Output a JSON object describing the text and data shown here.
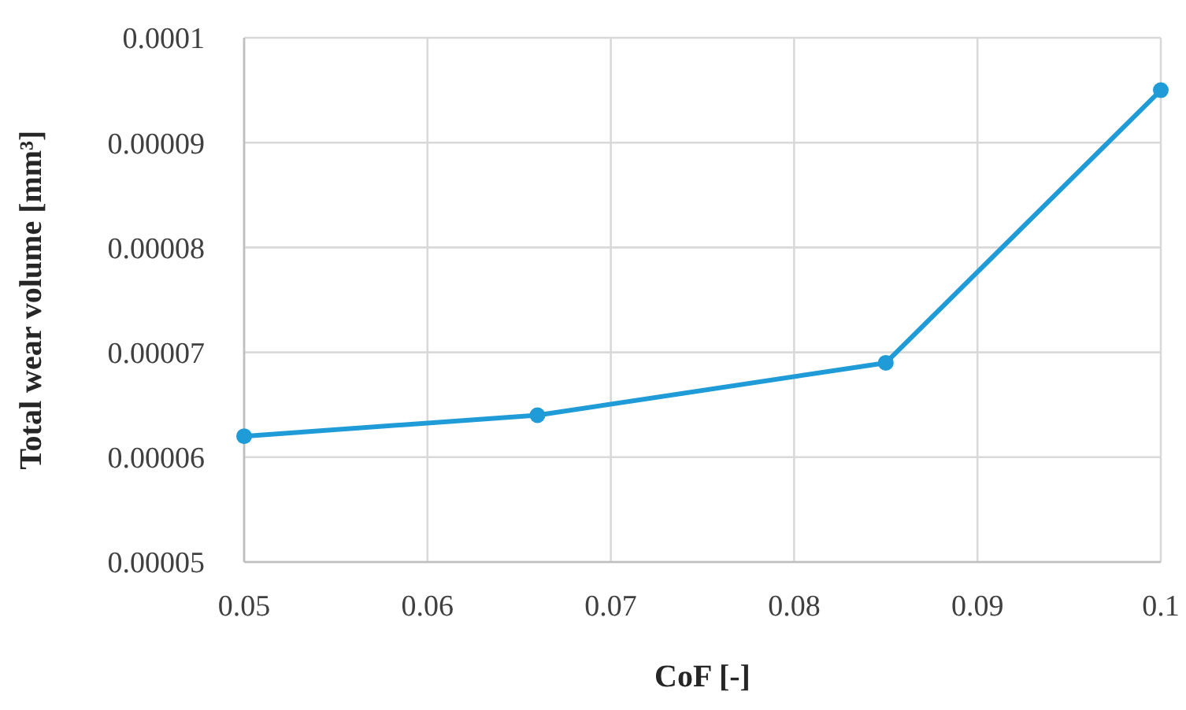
{
  "chart_data": {
    "type": "line",
    "xlabel": "CoF [-]",
    "ylabel": "Total wear volume [mm³]",
    "x": [
      0.05,
      0.066,
      0.085,
      0.1
    ],
    "series": [
      {
        "color": "#1f9bd7",
        "values": [
          6.2e-05,
          6.4e-05,
          6.9e-05,
          9.5e-05
        ]
      }
    ],
    "xlim": [
      0.05,
      0.1
    ],
    "xticks": [
      0.05,
      0.06,
      0.07,
      0.08,
      0.09,
      0.1
    ],
    "ylim": [
      5e-05,
      0.0001
    ],
    "yticks": [
      {
        "value": 5e-05,
        "label": "0.00005"
      },
      {
        "value": 6e-05,
        "label": "0.00006"
      },
      {
        "value": 7e-05,
        "label": "0.00007"
      },
      {
        "value": 8e-05,
        "label": "0.00008"
      },
      {
        "value": 9e-05,
        "label": "0.00009"
      },
      {
        "value": 0.0001,
        "label": "0.0001"
      }
    ],
    "grid": true,
    "marker": "circle",
    "line_style": "solid"
  }
}
